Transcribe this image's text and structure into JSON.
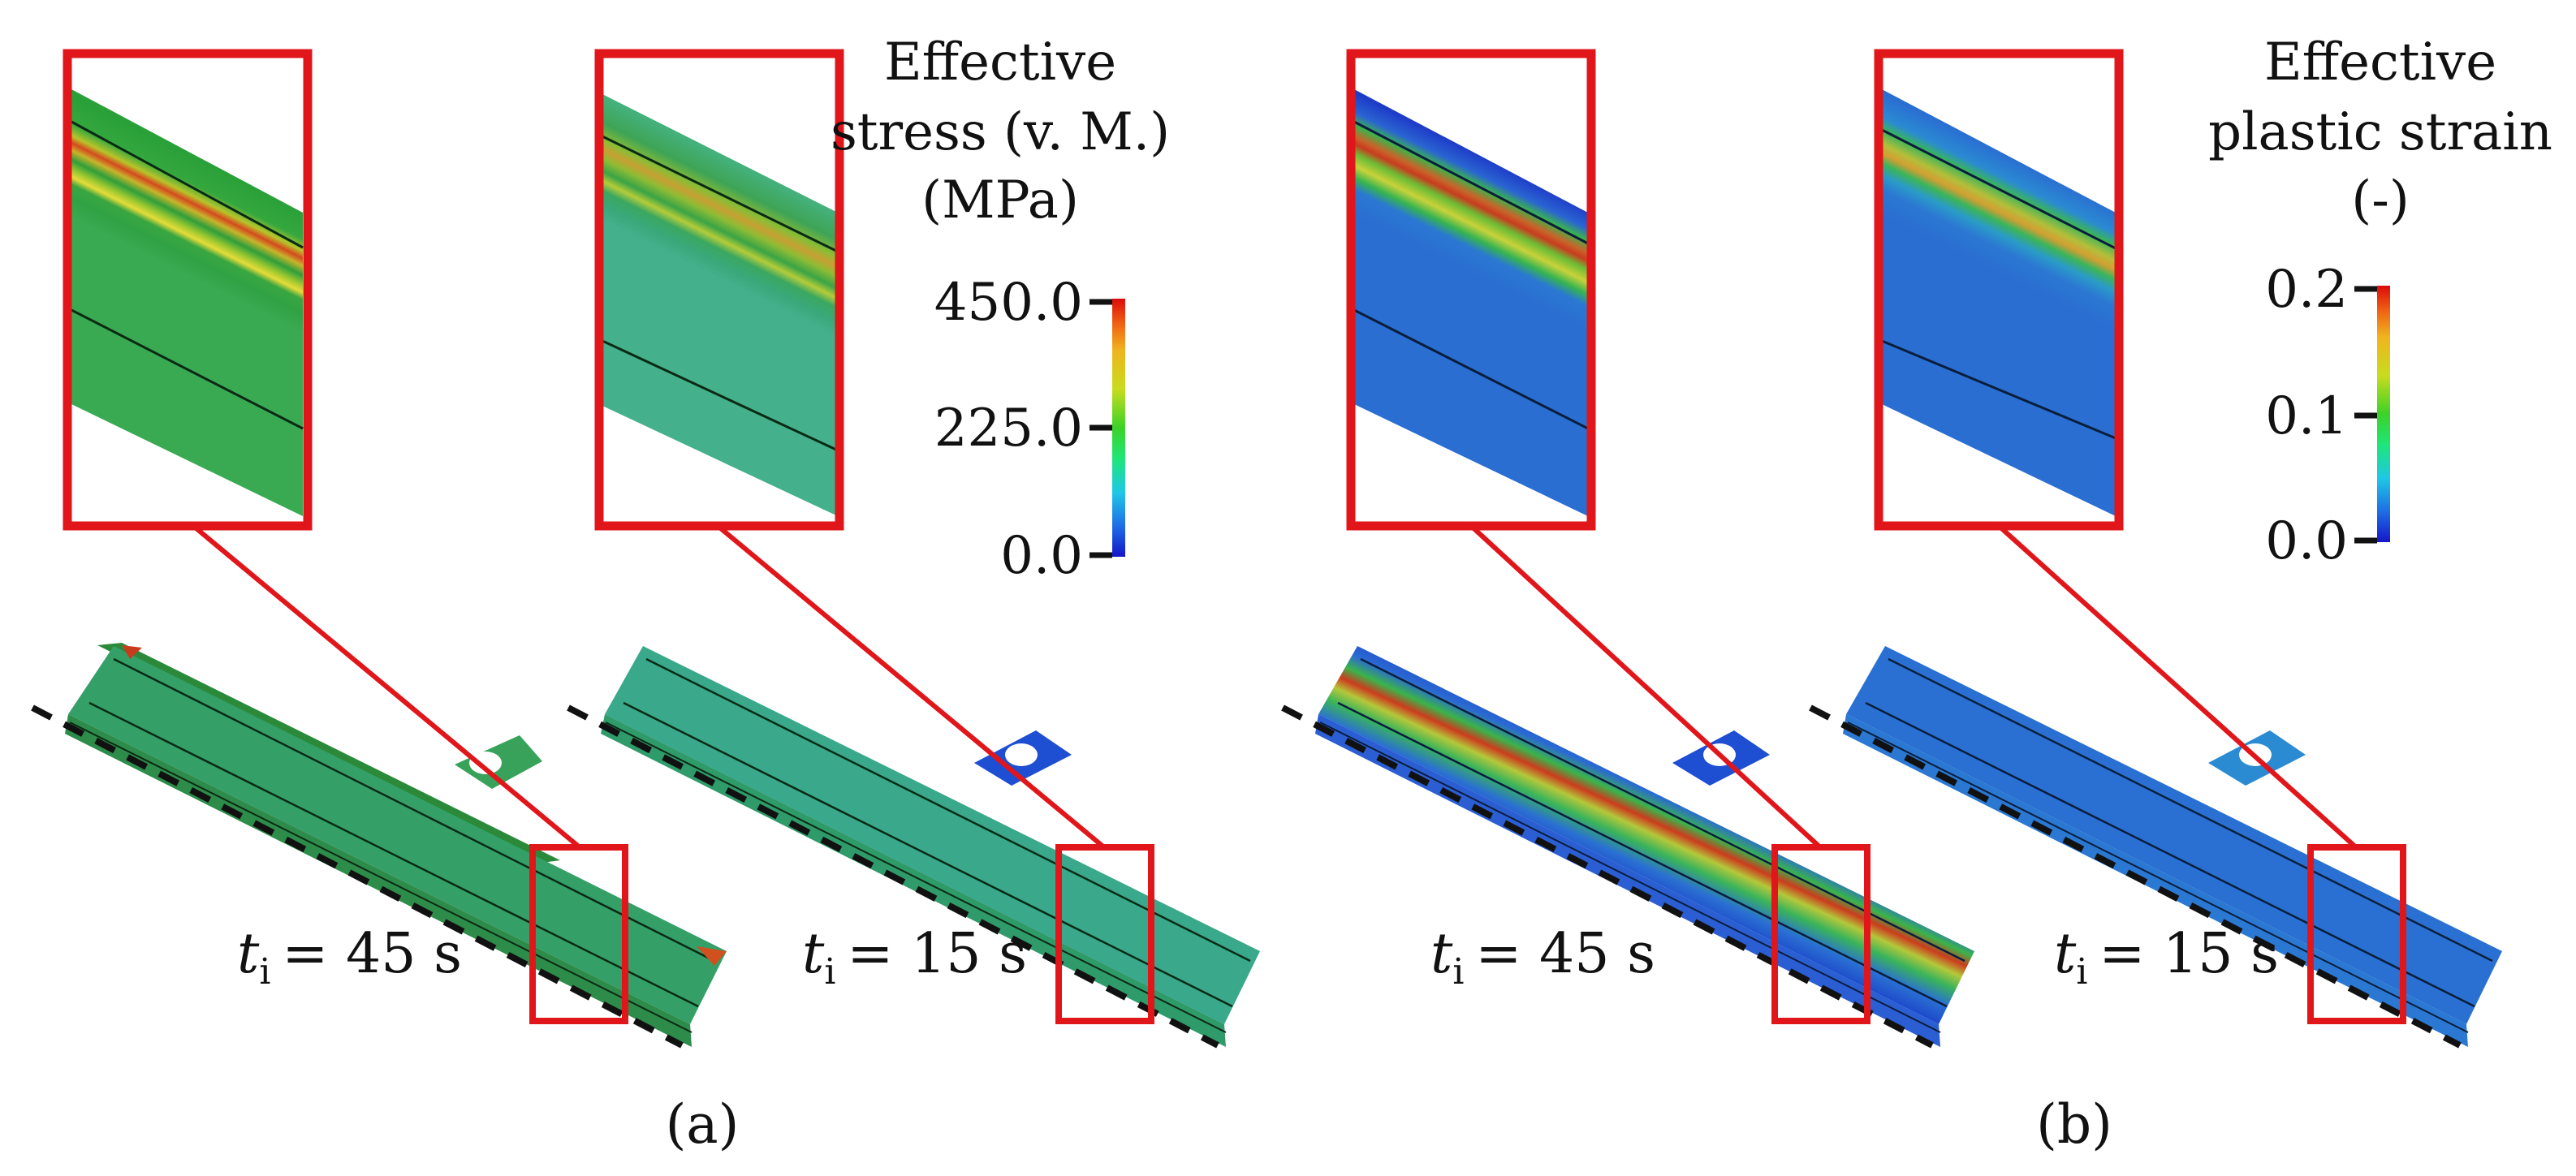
{
  "figure": {
    "panels": [
      {
        "caption": "(a)",
        "legend": {
          "title_lines": [
            "Effective",
            "stress (v. M.)",
            "(MPa)"
          ],
          "ticks": [
            "450.0",
            "225.0",
            "0.0"
          ],
          "range": [
            0.0,
            450.0
          ]
        },
        "cases": [
          {
            "var": "t",
            "sub": "i",
            "value": "= 45 s"
          },
          {
            "var": "t",
            "sub": "i",
            "value": "= 15 s"
          }
        ]
      },
      {
        "caption": "(b)",
        "legend": {
          "title_lines": [
            "Effective",
            "plastic strain",
            "(-)"
          ],
          "ticks": [
            "0.2",
            "0.1",
            "0.0"
          ],
          "range": [
            0.0,
            0.2
          ]
        },
        "cases": [
          {
            "var": "t",
            "sub": "i",
            "value": "= 45 s"
          },
          {
            "var": "t",
            "sub": "i",
            "value": "= 15 s"
          }
        ]
      }
    ],
    "colors": {
      "highlight": "#e0161b",
      "colormap": [
        "#1616c8",
        "#1e6ee6",
        "#1ec8e6",
        "#1ee678",
        "#3cd228",
        "#c8dc1e",
        "#f0b41e",
        "#f06414",
        "#dc0a0a"
      ],
      "stress_base": "#2fa84a",
      "strain_base": "#2d6fce"
    }
  }
}
